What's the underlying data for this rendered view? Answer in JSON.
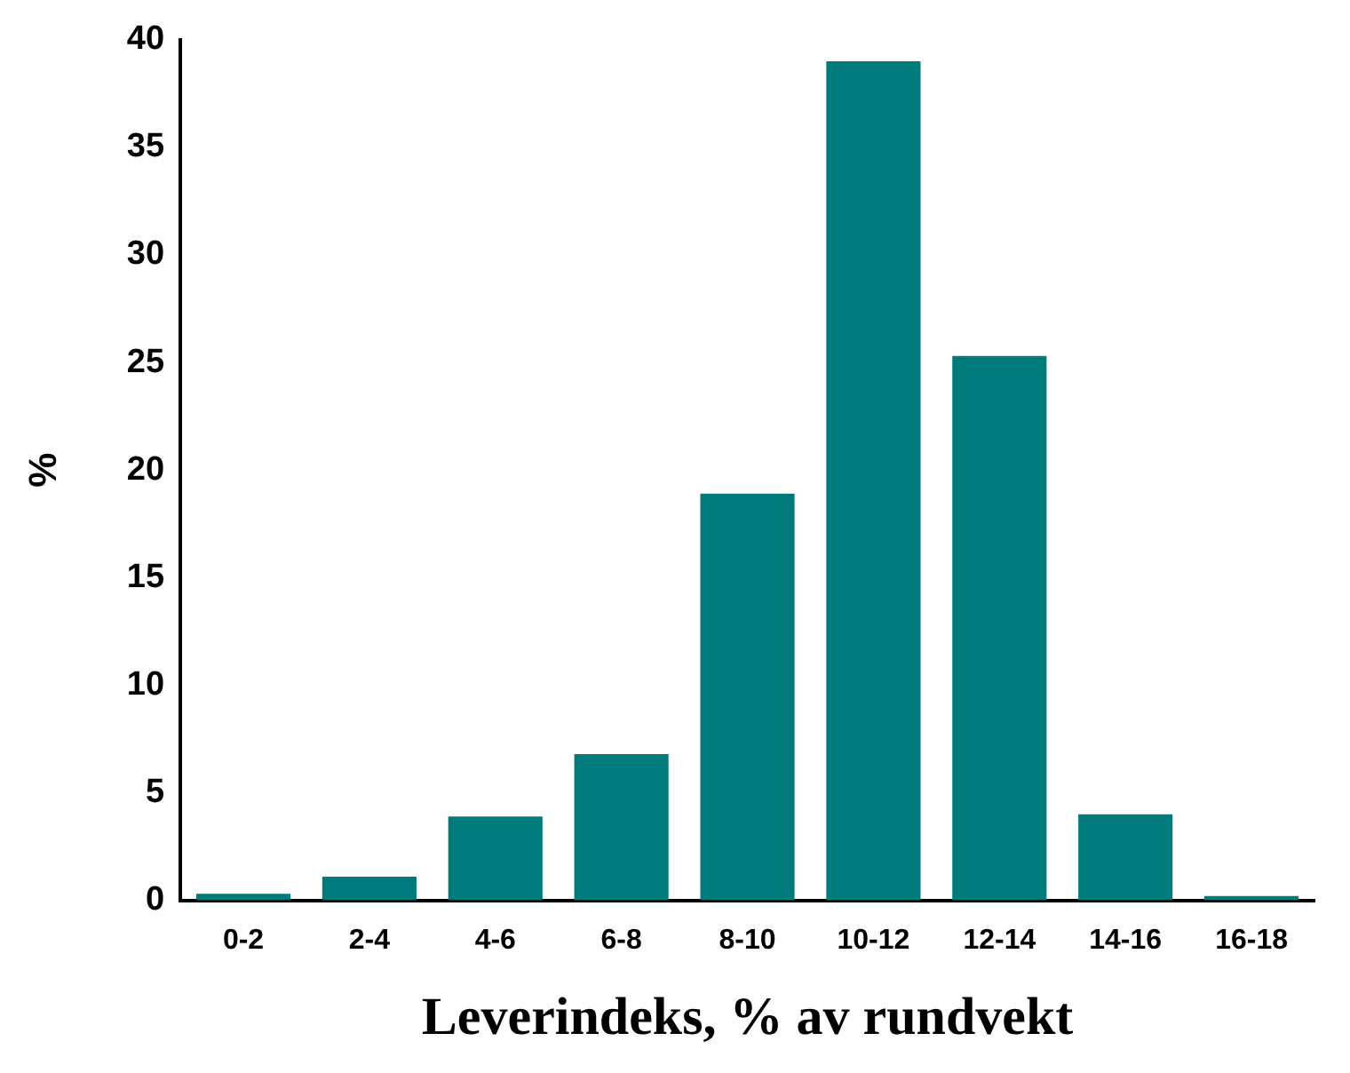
{
  "chart_data": {
    "type": "bar",
    "xlabel": "Leverindeks, % av rundvekt",
    "ylabel": "%",
    "categories": [
      "0-2",
      "2-4",
      "4-6",
      "6-8",
      "8-10",
      "10-12",
      "12-14",
      "14-16",
      "16-18"
    ],
    "values": [
      0.3,
      1.1,
      3.9,
      6.8,
      18.9,
      39,
      25.3,
      4,
      0.2
    ],
    "color": "#007b7b",
    "ylim": [
      0,
      40
    ],
    "yticks": [
      0,
      5,
      10,
      15,
      20,
      25,
      30,
      35,
      40
    ],
    "grid": false,
    "legend": false
  }
}
